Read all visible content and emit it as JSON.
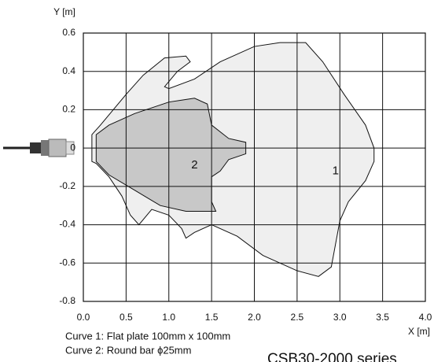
{
  "chart_data": {
    "type": "area",
    "xlabel": "X [m]",
    "ylabel": "Y [m]",
    "xlim": [
      0,
      4
    ],
    "ylim": [
      -0.8,
      0.6
    ],
    "xticks": [
      {
        "value": 0,
        "label": "0.0"
      },
      0.5,
      {
        "value": 1,
        "label": "1.0"
      },
      1.5,
      {
        "value": 2,
        "label": "2.0"
      },
      2.5,
      {
        "value": 3,
        "label": "3.0"
      },
      3.5,
      {
        "value": 4,
        "label": "4.0"
      }
    ],
    "yticks": [
      0.6,
      0.4,
      0.2,
      0,
      -0.2,
      -0.4,
      -0.6,
      -0.8
    ],
    "grid": true,
    "series": [
      {
        "name": "1",
        "color": "#efefef",
        "x": [
          0.1,
          0.2,
          0.35,
          0.5,
          0.7,
          0.95,
          1.2,
          1.25,
          1.1,
          0.95,
          1.0,
          1.3,
          1.6,
          2.0,
          2.3,
          2.6,
          2.8,
          3.05,
          3.3,
          3.4,
          3.4,
          3.3,
          3.1,
          3.0,
          2.95,
          2.9,
          2.75,
          2.5,
          2.1,
          1.8,
          1.5,
          1.3,
          1.2,
          1.15,
          1.0,
          0.8,
          0.65,
          0.55,
          0.45,
          0.3,
          0.15,
          0.1
        ],
        "values": [
          0.07,
          0.12,
          0.2,
          0.28,
          0.38,
          0.47,
          0.48,
          0.45,
          0.4,
          0.32,
          0.31,
          0.36,
          0.45,
          0.53,
          0.55,
          0.55,
          0.45,
          0.28,
          0.12,
          0,
          -0.07,
          -0.17,
          -0.28,
          -0.38,
          -0.5,
          -0.62,
          -0.67,
          -0.64,
          -0.56,
          -0.46,
          -0.4,
          -0.44,
          -0.47,
          -0.42,
          -0.35,
          -0.32,
          -0.4,
          -0.35,
          -0.25,
          -0.15,
          -0.08,
          -0.07
        ]
      },
      {
        "name": "2",
        "color": "#c8c8c8",
        "x": [
          0.15,
          0.3,
          0.6,
          1.0,
          1.3,
          1.45,
          1.5,
          1.7,
          1.9,
          1.9,
          1.7,
          1.6,
          1.5,
          1.5,
          1.55,
          1.2,
          0.9,
          0.6,
          0.3,
          0.15
        ],
        "values": [
          0.07,
          0.12,
          0.18,
          0.24,
          0.26,
          0.23,
          0.12,
          0.05,
          0.03,
          -0.03,
          -0.06,
          -0.12,
          -0.15,
          -0.28,
          -0.33,
          -0.33,
          -0.3,
          -0.22,
          -0.14,
          -0.07
        ]
      }
    ],
    "notes": [
      "Curve 1: Flat plate 100mm x 100mm",
      "Curve 2: Round bar ϕ25mm"
    ],
    "model": "CSB30-2000 series"
  }
}
